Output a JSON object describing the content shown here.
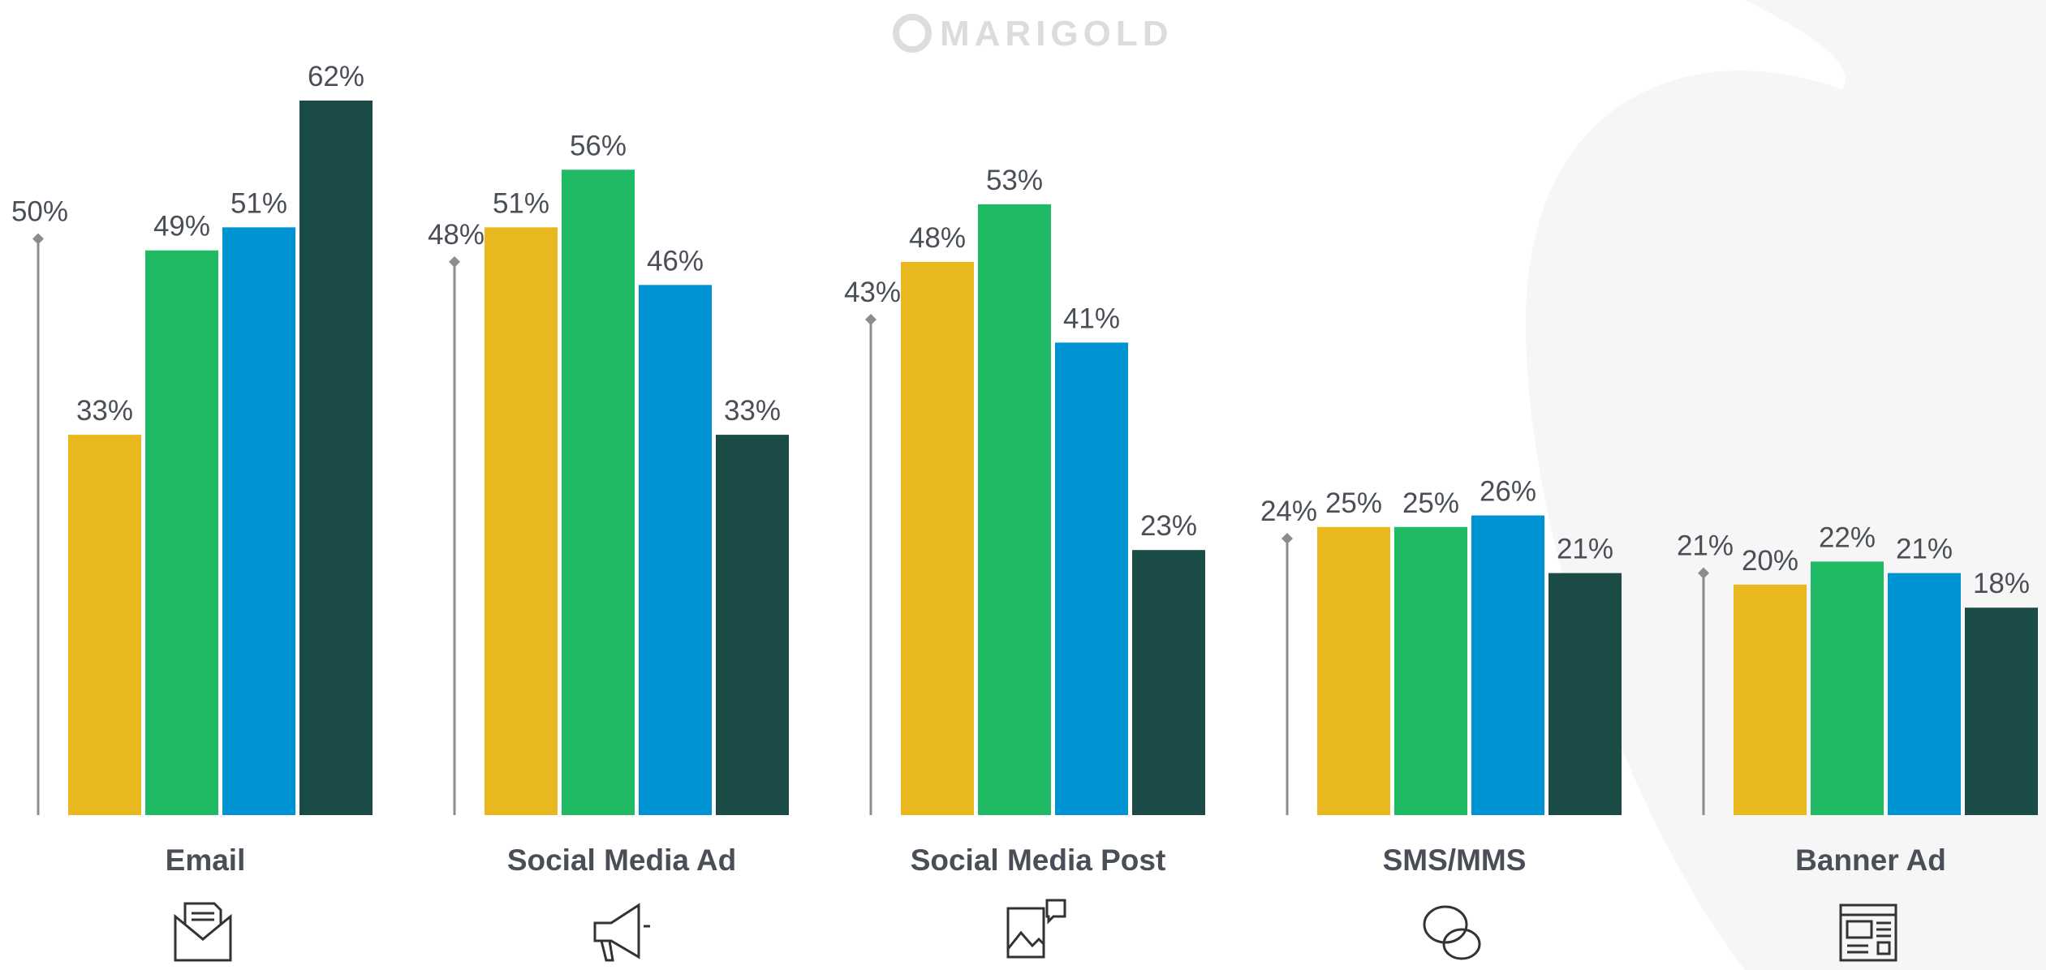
{
  "logo": "MARIGOLD",
  "chart_data": {
    "type": "bar",
    "categories": [
      "Email",
      "Social Media Ad",
      "Social Media Post",
      "SMS/MMS",
      "Banner Ad"
    ],
    "series": [
      {
        "color": "#8c8c8c",
        "style": "stem",
        "values": [
          50,
          48,
          43,
          24,
          21
        ],
        "value_labels": [
          "50%",
          "48%",
          "43%",
          "24%",
          "21%"
        ]
      },
      {
        "color": "#e8b81e",
        "values": [
          33,
          51,
          48,
          25,
          20
        ],
        "value_labels": [
          "33%",
          "51%",
          "48%",
          "25%",
          "20%"
        ]
      },
      {
        "color": "#20b964",
        "values": [
          49,
          56,
          53,
          25,
          22
        ],
        "value_labels": [
          "49%",
          "56%",
          "53%",
          "25%",
          "22%"
        ]
      },
      {
        "color": "#0093d3",
        "values": [
          51,
          46,
          41,
          26,
          21
        ],
        "value_labels": [
          "51%",
          "46%",
          "41%",
          "26%",
          "21%"
        ]
      },
      {
        "color": "#1b4b47",
        "values": [
          62,
          33,
          23,
          21,
          18
        ],
        "value_labels": [
          "62%",
          "33%",
          "23%",
          "21%",
          "18%"
        ]
      }
    ]
  }
}
